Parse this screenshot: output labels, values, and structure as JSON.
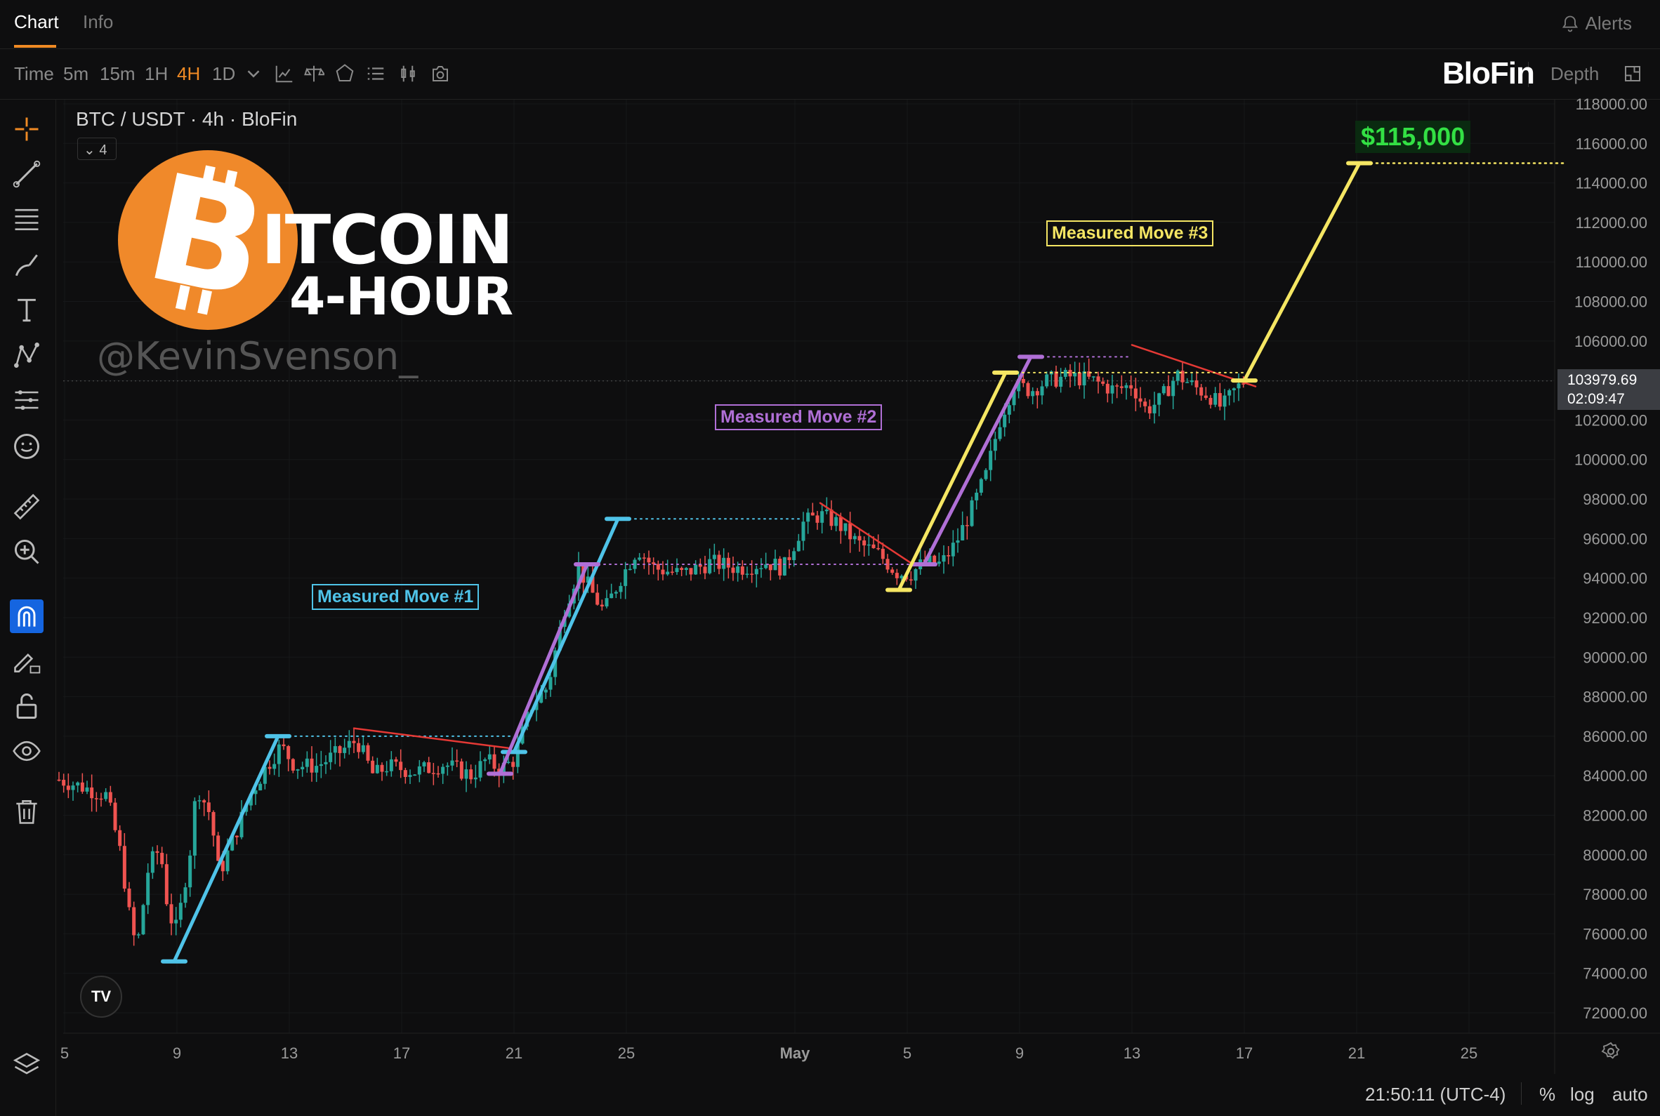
{
  "header": {
    "tabs": [
      "Chart",
      "Info"
    ],
    "alerts_label": "Alerts"
  },
  "toolbar": {
    "timeframes": [
      "Time",
      "5m",
      "15m",
      "1H",
      "4H",
      "1D"
    ],
    "selected": "4H",
    "brand": "BloFin",
    "depth_label": "Depth"
  },
  "overlay": {
    "pair": "BTC / USDT · 4h · BloFin",
    "collapse_count": "4",
    "brand_word_1": "ITCOIN",
    "brand_word_2": "4-HOUR",
    "handle": "@KevinSvenson_"
  },
  "status": {
    "clock": "21:50:11 (UTC-4)",
    "options": [
      "%",
      "log",
      "auto"
    ]
  },
  "colors": {
    "up": "#26a69a",
    "down": "#ef5350",
    "cyan": "#4fc3e8",
    "purple": "#b06fd6",
    "yellow": "#f5e663",
    "red": "#e53935",
    "orange": "#f08a24",
    "target_green": "#33e044"
  },
  "chart_data": {
    "type": "candlestick",
    "symbol": "BTC / USDT",
    "interval": "4h",
    "ylim": [
      71000,
      119000
    ],
    "y_ticks": [
      118000,
      116000,
      114000,
      112000,
      110000,
      108000,
      106000,
      104000,
      102000,
      100000,
      98000,
      96000,
      94000,
      92000,
      90000,
      88000,
      86000,
      84000,
      82000,
      80000,
      78000,
      76000,
      74000,
      72000
    ],
    "y_tick_labels": [
      "118000.00",
      "116000.00",
      "114000.00",
      "112000.00",
      "110000.00",
      "108000.00",
      "106000.00",
      "104000.00",
      "102000.00",
      "100000.00",
      "98000.00",
      "96000.00",
      "94000.00",
      "92000.00",
      "90000.00",
      "88000.00",
      "86000.00",
      "84000.00",
      "82000.00",
      "80000.00",
      "78000.00",
      "76000.00",
      "74000.00",
      "72000.00"
    ],
    "x_tick_labels": [
      "5",
      "9",
      "13",
      "17",
      "21",
      "25",
      "May",
      "5",
      "9",
      "13",
      "17",
      "21",
      "25"
    ],
    "x_tick_days": [
      -4,
      0,
      4,
      8,
      12,
      16,
      22,
      26,
      30,
      34,
      38,
      42,
      46
    ],
    "price_path": [
      [
        -4.2,
        83800
      ],
      [
        -3.5,
        83500
      ],
      [
        -2.5,
        83000
      ],
      [
        -2.0,
        80000
      ],
      [
        -1.6,
        76000
      ],
      [
        -1.4,
        75500
      ],
      [
        -1.0,
        79500
      ],
      [
        -0.6,
        80300
      ],
      [
        -0.3,
        77000
      ],
      [
        0.0,
        76200
      ],
      [
        0.5,
        80500
      ],
      [
        0.7,
        83500
      ],
      [
        1.2,
        82000
      ],
      [
        1.5,
        79000
      ],
      [
        2.2,
        81500
      ],
      [
        2.6,
        83000
      ],
      [
        3.2,
        84500
      ],
      [
        3.7,
        85500
      ],
      [
        4.2,
        84500
      ],
      [
        5.0,
        84500
      ],
      [
        5.8,
        85200
      ],
      [
        6.4,
        85800
      ],
      [
        7.0,
        84000
      ],
      [
        7.5,
        84500
      ],
      [
        8.5,
        84200
      ],
      [
        9.5,
        84600
      ],
      [
        10.5,
        84000
      ],
      [
        11.0,
        84800
      ],
      [
        11.5,
        84300
      ],
      [
        12.0,
        84800
      ],
      [
        12.6,
        87500
      ],
      [
        13.2,
        88500
      ],
      [
        13.8,
        92500
      ],
      [
        14.3,
        94500
      ],
      [
        14.8,
        93200
      ],
      [
        15.2,
        92300
      ],
      [
        15.8,
        94000
      ],
      [
        16.4,
        95500
      ],
      [
        17.0,
        94500
      ],
      [
        18.0,
        94200
      ],
      [
        19.0,
        94800
      ],
      [
        20.0,
        94500
      ],
      [
        21.0,
        94800
      ],
      [
        21.6,
        94500
      ],
      [
        22.3,
        96800
      ],
      [
        22.9,
        97200
      ],
      [
        23.5,
        96800
      ],
      [
        24.2,
        95800
      ],
      [
        25.0,
        95200
      ],
      [
        25.6,
        94300
      ],
      [
        26.1,
        94200
      ],
      [
        26.6,
        94800
      ],
      [
        27.2,
        94700
      ],
      [
        27.7,
        95700
      ],
      [
        28.3,
        97500
      ],
      [
        28.8,
        99200
      ],
      [
        29.3,
        102000
      ],
      [
        29.8,
        103800
      ],
      [
        30.4,
        103500
      ],
      [
        31.0,
        104000
      ],
      [
        31.8,
        104200
      ],
      [
        32.6,
        104000
      ],
      [
        33.4,
        103500
      ],
      [
        34.0,
        103800
      ],
      [
        34.5,
        102500
      ],
      [
        35.0,
        103000
      ],
      [
        35.6,
        104300
      ],
      [
        36.2,
        103700
      ],
      [
        36.8,
        103200
      ],
      [
        37.2,
        102600
      ],
      [
        37.6,
        103400
      ],
      [
        38.0,
        103980
      ]
    ],
    "target_label": "$115,000",
    "current_price_label": "103979.69",
    "countdown_label": "02:09:47",
    "annotations": [
      "Measured Move #1",
      "Measured Move #2",
      "Measured Move #3"
    ]
  }
}
